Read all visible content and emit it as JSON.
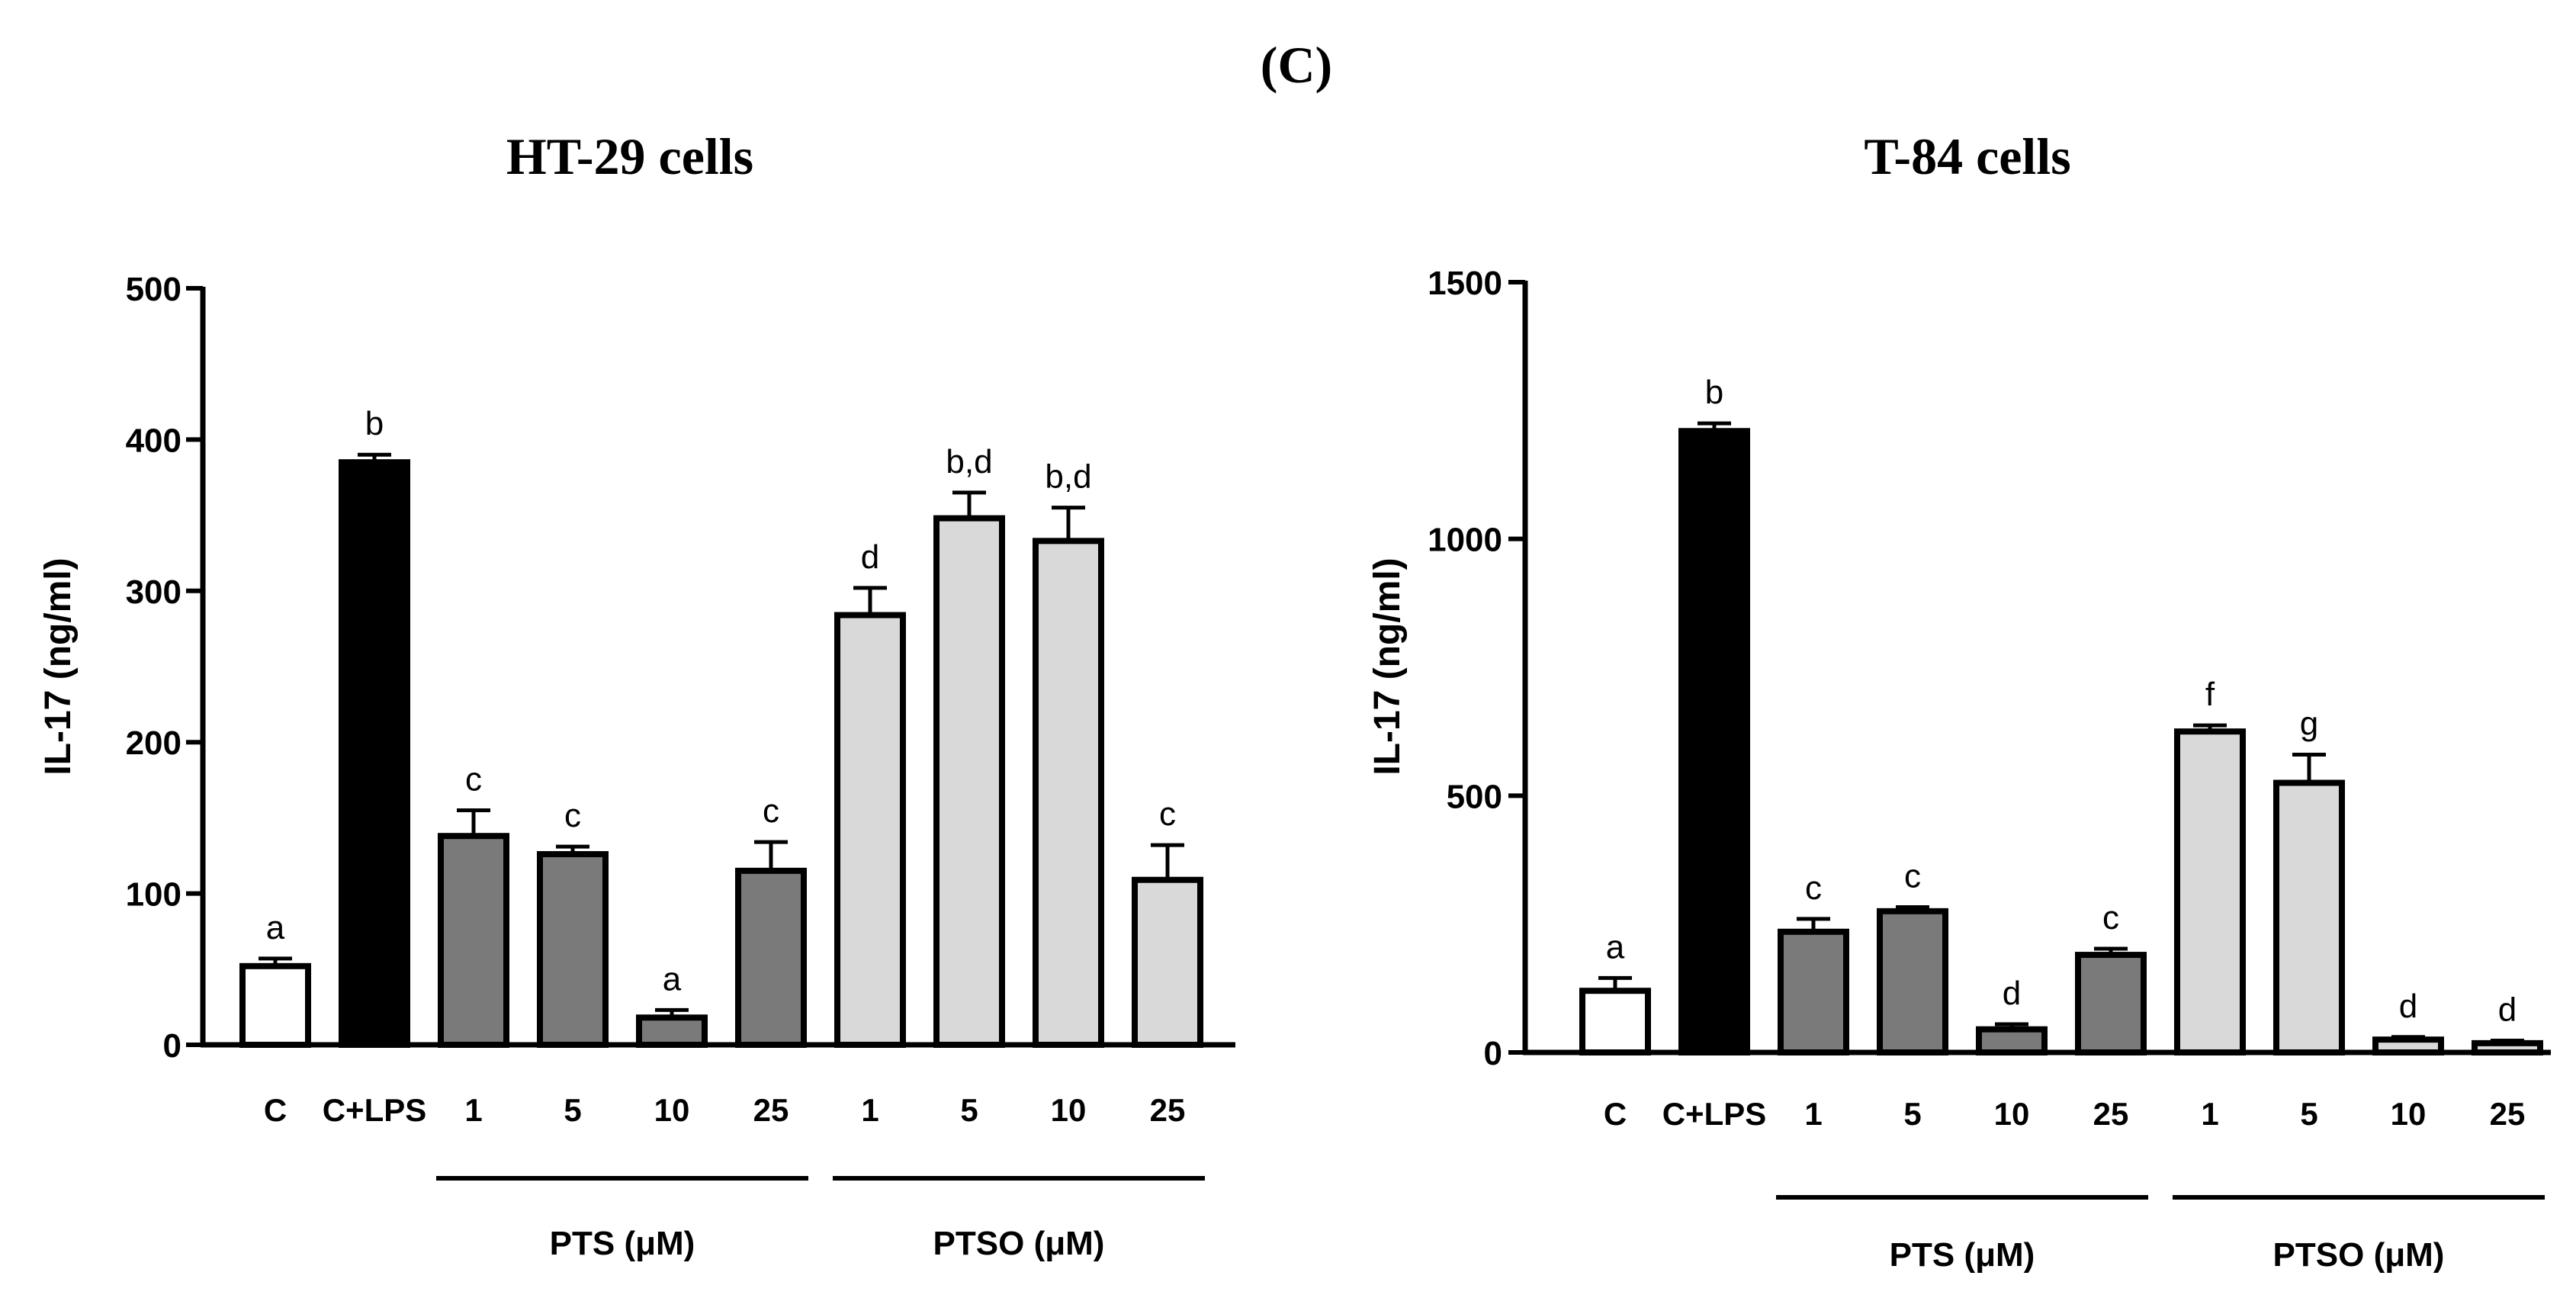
{
  "figure": {
    "panel_label": "(C)"
  },
  "colors": {
    "control": "#ffffff",
    "lps": "#000000",
    "pts": "#7a7a7a",
    "ptso": "#d9d9d9",
    "stroke": "#000000"
  },
  "chart_data": [
    {
      "type": "bar",
      "title": "HT-29 cells",
      "ylabel": "IL-17 (ng/ml)",
      "ylim": [
        0,
        500
      ],
      "yticks": [
        0,
        100,
        200,
        300,
        400,
        500
      ],
      "categories": [
        "C",
        "C+LPS",
        "1",
        "5",
        "10",
        "25",
        "1",
        "5",
        "10",
        "25"
      ],
      "groups": [
        "control",
        "lps",
        "pts",
        "pts",
        "pts",
        "pts",
        "ptso",
        "ptso",
        "ptso",
        "ptso"
      ],
      "values": [
        52,
        385,
        138,
        126,
        18,
        115,
        284,
        348,
        333,
        109
      ],
      "errors": [
        5,
        5,
        17,
        5,
        5,
        19,
        18,
        17,
        22,
        23
      ],
      "letters": [
        "a",
        "b",
        "c",
        "c",
        "a",
        "c",
        "d",
        "b,d",
        "b,d",
        "c"
      ],
      "group_labels": [
        {
          "label": "PTS (μM)",
          "from": 2,
          "to": 5
        },
        {
          "label": "PTSO (μM)",
          "from": 6,
          "to": 9
        }
      ]
    },
    {
      "type": "bar",
      "title": "T-84 cells",
      "ylabel": "IL-17 (ng/ml)",
      "ylim": [
        0,
        1500
      ],
      "yticks": [
        0,
        500,
        1000,
        1500
      ],
      "categories": [
        "C",
        "C+LPS",
        "1",
        "5",
        "10",
        "25",
        "1",
        "5",
        "10",
        "25"
      ],
      "groups": [
        "control",
        "lps",
        "pts",
        "pts",
        "pts",
        "pts",
        "ptso",
        "ptso",
        "ptso",
        "ptso"
      ],
      "values": [
        120,
        1210,
        235,
        275,
        45,
        190,
        625,
        525,
        25,
        18
      ],
      "errors": [
        25,
        15,
        25,
        8,
        10,
        12,
        12,
        55,
        5,
        5
      ],
      "letters": [
        "a",
        "b",
        "c",
        "c",
        "d",
        "c",
        "f",
        "g",
        "d",
        "d"
      ],
      "group_labels": [
        {
          "label": "PTS (μM)",
          "from": 2,
          "to": 5
        },
        {
          "label": "PTSO (μM)",
          "from": 6,
          "to": 9
        }
      ]
    }
  ]
}
